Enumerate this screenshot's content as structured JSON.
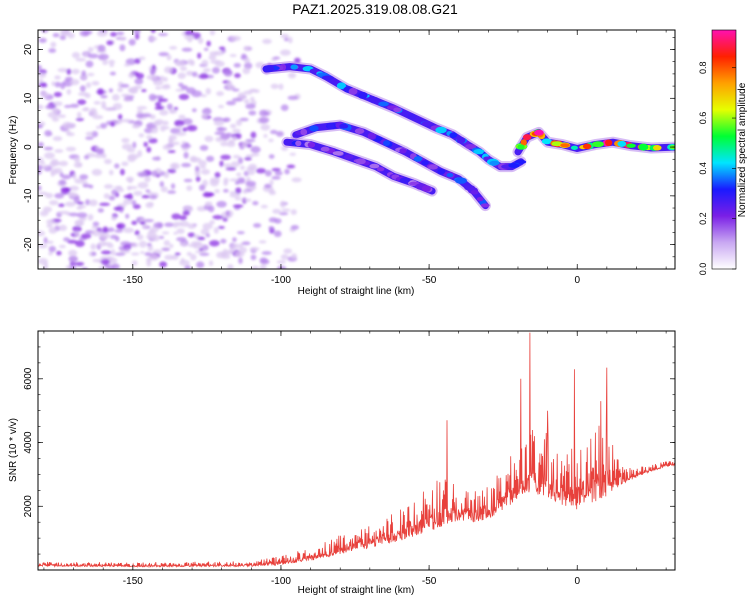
{
  "title": "PAZ1.2025.319.08.08.G21",
  "colors": {
    "snr_line": "#e8413c",
    "speckle_light": "#dcc8f2",
    "speckle_mid": "#b787ec",
    "speckle_dark": "#8a2be2",
    "axes": "#000000"
  },
  "colorbar": {
    "label": "Normalized spectral amplitude",
    "range": [
      0,
      0.95
    ],
    "ticks": [
      0.0,
      0.2,
      0.4,
      0.6,
      0.8
    ],
    "tick_labels": [
      "0.0",
      "0.2",
      "0.4",
      "0.6",
      "0.8"
    ],
    "stops": [
      "#ffffff",
      "#c9a8f2",
      "#7a1fe6",
      "#1a1aff",
      "#00e5ff",
      "#00ff33",
      "#e6ff00",
      "#ffa000",
      "#ff2000",
      "#ff10b0"
    ]
  },
  "chart_data": [
    {
      "type": "heatmap",
      "name": "spectrogram",
      "xlabel": "Height of straight line (km)",
      "ylabel": "Frequency (Hz)",
      "xlim": [
        -182,
        33
      ],
      "ylim": [
        -25,
        24
      ],
      "xticks": [
        -150,
        -100,
        -50,
        0
      ],
      "xtick_labels": [
        "-150",
        "-100",
        "-50",
        "0"
      ],
      "yticks": [
        -20,
        -10,
        0,
        10,
        20
      ],
      "ytick_labels": [
        "-20",
        "-10",
        "0",
        "10",
        "20"
      ],
      "noise_region_x": [
        -182,
        -100
      ],
      "tracks": [
        {
          "name": "upper-branch",
          "points": [
            [
              -105,
              16
            ],
            [
              -97,
              16.5
            ],
            [
              -90,
              16
            ],
            [
              -85,
              14.5
            ],
            [
              -78,
              12
            ],
            [
              -70,
              10
            ],
            [
              -62,
              8
            ],
            [
              -55,
              6
            ],
            [
              -48,
              4
            ],
            [
              -42,
              2.5
            ],
            [
              -37,
              0.5
            ],
            [
              -33,
              -1
            ],
            [
              -30,
              -2.5
            ],
            [
              -26,
              -4
            ],
            [
              -22,
              -4
            ],
            [
              -19,
              -3
            ]
          ],
          "amp": 0.32
        },
        {
          "name": "middle-branch",
          "points": [
            [
              -95,
              2.5
            ],
            [
              -88,
              4
            ],
            [
              -80,
              4.5
            ],
            [
              -72,
              3
            ],
            [
              -65,
              1
            ],
            [
              -58,
              -1
            ],
            [
              -52,
              -3
            ],
            [
              -46,
              -5
            ],
            [
              -40,
              -6.5
            ],
            [
              -35,
              -9
            ],
            [
              -31,
              -12
            ]
          ],
          "amp": 0.3
        },
        {
          "name": "lower-branch",
          "points": [
            [
              -98,
              1
            ],
            [
              -90,
              0.5
            ],
            [
              -82,
              -1
            ],
            [
              -75,
              -2.5
            ],
            [
              -68,
              -4
            ],
            [
              -62,
              -6
            ],
            [
              -55,
              -7.5
            ],
            [
              -49,
              -9
            ]
          ],
          "amp": 0.25
        },
        {
          "name": "near-zero-line",
          "points": [
            [
              -20,
              -1
            ],
            [
              -17,
              2
            ],
            [
              -13,
              3
            ],
            [
              -10,
              1
            ],
            [
              -5,
              0.5
            ],
            [
              0,
              -0.3
            ],
            [
              6,
              0.5
            ],
            [
              12,
              1
            ],
            [
              18,
              0.3
            ],
            [
              25,
              -0.2
            ],
            [
              33,
              0
            ]
          ],
          "amp": 0.75
        }
      ]
    },
    {
      "type": "line",
      "name": "snr",
      "xlabel": "Height of straight line (km)",
      "ylabel": "SNR (10 * v/v)",
      "xlim": [
        -182,
        33
      ],
      "ylim": [
        0,
        7500
      ],
      "xticks": [
        -150,
        -100,
        -50,
        0
      ],
      "xtick_labels": [
        "-150",
        "-100",
        "-50",
        "0"
      ],
      "yticks": [
        2000,
        4000,
        6000
      ],
      "ytick_labels": [
        "2000",
        "4000",
        "6000"
      ],
      "envelope": {
        "x": [
          -182,
          -150,
          -110,
          -100,
          -90,
          -80,
          -70,
          -60,
          -50,
          -45,
          -40,
          -35,
          -30,
          -25,
          -20,
          -15,
          -10,
          -5,
          0,
          5,
          10,
          15,
          20,
          25,
          33
        ],
        "base": [
          120,
          100,
          110,
          160,
          300,
          500,
          700,
          900,
          1200,
          1400,
          1500,
          1500,
          1600,
          1900,
          2200,
          2400,
          2300,
          2000,
          1900,
          2100,
          2300,
          2700,
          2900,
          3100,
          3300
        ],
        "top": [
          260,
          240,
          280,
          450,
          700,
          1100,
          1500,
          1900,
          2600,
          3000,
          2800,
          2500,
          2700,
          3300,
          4200,
          4500,
          4300,
          3800,
          4000,
          4300,
          4800,
          3300,
          3200,
          3350,
          3450
        ]
      },
      "peaks": [
        {
          "x": -44,
          "y": 4700
        },
        {
          "x": -16,
          "y": 7450
        },
        {
          "x": -19,
          "y": 6000
        },
        {
          "x": -1,
          "y": 6300
        },
        {
          "x": 10,
          "y": 6350
        },
        {
          "x": 8,
          "y": 5300
        },
        {
          "x": -10,
          "y": 5000
        }
      ]
    }
  ]
}
